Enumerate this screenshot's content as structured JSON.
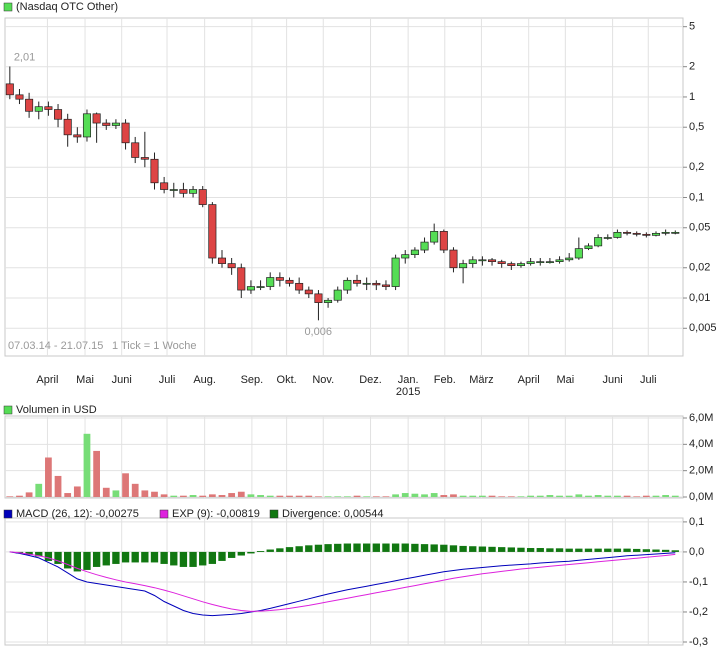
{
  "chart_data": [
    {
      "type": "candlestick",
      "legend": "(Nasdaq OTC Other)",
      "legend_color": "#55dd55",
      "date_range": "07.03.14 - 21.07.15",
      "tick_note": "1 Tick = 1 Woche",
      "up_color": "#55dd55",
      "down_color": "#dd4444",
      "log_scale": true,
      "grid": true,
      "ylim": [
        0.00265,
        6.1
      ],
      "yticks": [
        5,
        2,
        1,
        {
          "value": 0.5,
          "label": "0,5"
        },
        {
          "value": 0.2,
          "label": "0,2"
        },
        {
          "value": 0.1,
          "label": "0,1"
        },
        {
          "value": 0.05,
          "label": "0,05"
        },
        {
          "value": 0.02,
          "label": "0,02"
        },
        {
          "value": 0.01,
          "label": "0,01"
        },
        {
          "value": 0.005,
          "label": "0,005"
        }
      ],
      "xlim": [
        -0.5,
        69.8
      ],
      "xticks": [
        {
          "value": 3.9,
          "label": "April"
        },
        {
          "value": 7.8,
          "label": "Mai"
        },
        {
          "value": 11.6,
          "label": "Juni"
        },
        {
          "value": 16.3,
          "label": "Juli"
        },
        {
          "value": 20.2,
          "label": "Aug."
        },
        {
          "value": 25.1,
          "label": "Sep."
        },
        {
          "value": 28.7,
          "label": "Okt."
        },
        {
          "value": 32.5,
          "label": "Nov."
        },
        {
          "value": 37.4,
          "label": "Dez."
        },
        {
          "value": 41.3,
          "label": "Jan."
        },
        {
          "value": 45.1,
          "label": "Feb."
        },
        {
          "value": 48.9,
          "label": "März"
        },
        {
          "value": 53.8,
          "label": "April"
        },
        {
          "value": 57.6,
          "label": "Mai"
        },
        {
          "value": 62.5,
          "label": "Juni"
        },
        {
          "value": 66.2,
          "label": "Juli"
        }
      ],
      "year_labels": [
        {
          "value": 41.3,
          "label": "2015"
        }
      ],
      "open": [
        1.35,
        1.05,
        0.95,
        0.72,
        0.8,
        0.75,
        0.6,
        0.42,
        0.4,
        0.68,
        0.55,
        0.52,
        0.55,
        0.35,
        0.25,
        0.24,
        0.14,
        0.12,
        0.12,
        0.11,
        0.12,
        0.085,
        0.025,
        0.022,
        0.02,
        0.012,
        0.013,
        0.013,
        0.016,
        0.015,
        0.014,
        0.012,
        0.011,
        0.009,
        0.0095,
        0.012,
        0.015,
        0.014,
        0.014,
        0.0135,
        0.013,
        0.025,
        0.027,
        0.03,
        0.036,
        0.046,
        0.03,
        0.02,
        0.022,
        0.024,
        0.024,
        0.023,
        0.022,
        0.021,
        0.022,
        0.023,
        0.023,
        0.023,
        0.024,
        0.025,
        0.031,
        0.033,
        0.04,
        0.04,
        0.045,
        0.044,
        0.043,
        0.042,
        0.044,
        0.045
      ],
      "close": [
        1.05,
        0.95,
        0.72,
        0.8,
        0.75,
        0.6,
        0.42,
        0.4,
        0.68,
        0.55,
        0.52,
        0.55,
        0.35,
        0.25,
        0.24,
        0.14,
        0.12,
        0.12,
        0.11,
        0.12,
        0.085,
        0.025,
        0.022,
        0.02,
        0.012,
        0.013,
        0.013,
        0.016,
        0.015,
        0.014,
        0.012,
        0.011,
        0.009,
        0.0095,
        0.012,
        0.015,
        0.014,
        0.014,
        0.0135,
        0.013,
        0.025,
        0.027,
        0.03,
        0.036,
        0.046,
        0.03,
        0.02,
        0.022,
        0.024,
        0.024,
        0.023,
        0.022,
        0.021,
        0.022,
        0.023,
        0.023,
        0.023,
        0.024,
        0.025,
        0.031,
        0.033,
        0.04,
        0.04,
        0.045,
        0.044,
        0.043,
        0.042,
        0.044,
        0.045,
        0.045
      ],
      "high": [
        2.01,
        1.2,
        1.1,
        0.9,
        0.9,
        0.85,
        0.68,
        0.5,
        0.75,
        0.7,
        0.6,
        0.6,
        0.6,
        0.4,
        0.45,
        0.28,
        0.16,
        0.14,
        0.14,
        0.13,
        0.13,
        0.09,
        0.03,
        0.025,
        0.022,
        0.015,
        0.015,
        0.018,
        0.018,
        0.016,
        0.016,
        0.013,
        0.012,
        0.01,
        0.013,
        0.016,
        0.017,
        0.016,
        0.015,
        0.015,
        0.027,
        0.03,
        0.032,
        0.04,
        0.055,
        0.048,
        0.032,
        0.024,
        0.026,
        0.026,
        0.025,
        0.024,
        0.023,
        0.023,
        0.025,
        0.025,
        0.025,
        0.026,
        0.028,
        0.04,
        0.035,
        0.043,
        0.043,
        0.048,
        0.047,
        0.046,
        0.045,
        0.046,
        0.048,
        0.047
      ],
      "low": [
        0.95,
        0.85,
        0.62,
        0.6,
        0.65,
        0.5,
        0.32,
        0.35,
        0.36,
        0.35,
        0.47,
        0.48,
        0.3,
        0.22,
        0.2,
        0.12,
        0.11,
        0.1,
        0.1,
        0.1,
        0.08,
        0.022,
        0.02,
        0.017,
        0.01,
        0.011,
        0.012,
        0.012,
        0.013,
        0.013,
        0.011,
        0.01,
        0.006,
        0.008,
        0.009,
        0.011,
        0.013,
        0.012,
        0.012,
        0.012,
        0.012,
        0.022,
        0.025,
        0.028,
        0.034,
        0.028,
        0.018,
        0.014,
        0.02,
        0.021,
        0.021,
        0.02,
        0.019,
        0.02,
        0.021,
        0.021,
        0.022,
        0.022,
        0.023,
        0.024,
        0.03,
        0.032,
        0.038,
        0.039,
        0.042,
        0.041,
        0.04,
        0.041,
        0.042,
        0.043
      ],
      "high_label": "2,01",
      "low_label": "0,006"
    },
    {
      "type": "volume",
      "legend": "Volumen in USD",
      "legend_color": "#55dd55",
      "grid": true,
      "ylim": [
        0,
        6000000
      ],
      "yticks": [
        {
          "value": 6000000,
          "label": "6,0M"
        },
        {
          "value": 4000000,
          "label": "4,0M"
        },
        {
          "value": 2000000,
          "label": "2,0M"
        },
        {
          "value": 0,
          "label": "0,0M"
        }
      ],
      "values": [
        50000,
        100000,
        350000,
        1000000,
        3000000,
        1600000,
        300000,
        800000,
        4800000,
        3500000,
        700000,
        500000,
        1800000,
        1000000,
        500000,
        400000,
        200000,
        100000,
        100000,
        150000,
        100000,
        200000,
        150000,
        300000,
        400000,
        200000,
        150000,
        100000,
        100000,
        100000,
        100000,
        100000,
        50000,
        50000,
        50000,
        50000,
        100000,
        50000,
        50000,
        50000,
        200000,
        300000,
        250000,
        200000,
        300000,
        150000,
        200000,
        100000,
        100000,
        100000,
        100000,
        50000,
        50000,
        50000,
        100000,
        100000,
        150000,
        100000,
        100000,
        200000,
        100000,
        150000,
        100000,
        100000,
        100000,
        50000,
        100000,
        100000,
        150000,
        100000
      ]
    },
    {
      "type": "macd",
      "grid": true,
      "ylim": [
        -0.31,
        0.113
      ],
      "yticks": [
        {
          "value": 0.1,
          "label": "0,1"
        },
        {
          "value": 0,
          "label": "0,0"
        },
        {
          "value": -0.1,
          "label": "-0,1"
        },
        {
          "value": -0.2,
          "label": "-0,2"
        },
        {
          "value": -0.3,
          "label": "-0,3"
        }
      ],
      "series": [
        {
          "name": "MACD (26, 12): -0,00275",
          "color": "#0000bb",
          "kind": "line",
          "values": [
            0,
            -0.005,
            -0.012,
            -0.02,
            -0.035,
            -0.05,
            -0.07,
            -0.09,
            -0.1,
            -0.105,
            -0.11,
            -0.115,
            -0.12,
            -0.125,
            -0.13,
            -0.145,
            -0.165,
            -0.18,
            -0.195,
            -0.205,
            -0.21,
            -0.212,
            -0.21,
            -0.208,
            -0.205,
            -0.2,
            -0.195,
            -0.188,
            -0.18,
            -0.172,
            -0.164,
            -0.156,
            -0.148,
            -0.14,
            -0.133,
            -0.126,
            -0.12,
            -0.114,
            -0.108,
            -0.102,
            -0.096,
            -0.09,
            -0.084,
            -0.078,
            -0.072,
            -0.066,
            -0.062,
            -0.058,
            -0.055,
            -0.052,
            -0.049,
            -0.046,
            -0.044,
            -0.042,
            -0.04,
            -0.037,
            -0.035,
            -0.033,
            -0.031,
            -0.028,
            -0.025,
            -0.022,
            -0.019,
            -0.016,
            -0.013,
            -0.011,
            -0.009,
            -0.007,
            -0.005,
            -0.00275
          ]
        },
        {
          "name": "EXP (9): -0,00819",
          "color": "#dd22dd",
          "kind": "line",
          "values": [
            0,
            -0.003,
            -0.008,
            -0.013,
            -0.02,
            -0.03,
            -0.042,
            -0.055,
            -0.066,
            -0.076,
            -0.085,
            -0.093,
            -0.1,
            -0.106,
            -0.112,
            -0.119,
            -0.127,
            -0.136,
            -0.146,
            -0.156,
            -0.166,
            -0.175,
            -0.183,
            -0.19,
            -0.195,
            -0.198,
            -0.197,
            -0.195,
            -0.192,
            -0.188,
            -0.183,
            -0.178,
            -0.172,
            -0.166,
            -0.16,
            -0.154,
            -0.148,
            -0.142,
            -0.136,
            -0.13,
            -0.124,
            -0.118,
            -0.112,
            -0.106,
            -0.1,
            -0.094,
            -0.088,
            -0.083,
            -0.078,
            -0.073,
            -0.069,
            -0.065,
            -0.061,
            -0.057,
            -0.054,
            -0.051,
            -0.048,
            -0.045,
            -0.042,
            -0.039,
            -0.036,
            -0.033,
            -0.03,
            -0.027,
            -0.024,
            -0.021,
            -0.018,
            -0.015,
            -0.012,
            -0.00819
          ]
        },
        {
          "name": "Divergence: 0,00544",
          "color": "#117711",
          "kind": "bar",
          "values": [
            0,
            -0.005,
            -0.01,
            -0.015,
            -0.03,
            -0.04,
            -0.055,
            -0.065,
            -0.06,
            -0.05,
            -0.045,
            -0.04,
            -0.035,
            -0.035,
            -0.035,
            -0.035,
            -0.04,
            -0.045,
            -0.05,
            -0.05,
            -0.045,
            -0.04,
            -0.03,
            -0.02,
            -0.012,
            -0.005,
            0.003,
            0.008,
            0.012,
            0.016,
            0.019,
            0.022,
            0.024,
            0.026,
            0.027,
            0.028,
            0.028,
            0.028,
            0.028,
            0.028,
            0.028,
            0.028,
            0.027,
            0.026,
            0.025,
            0.024,
            0.022,
            0.02,
            0.019,
            0.018,
            0.017,
            0.016,
            0.015,
            0.014,
            0.013,
            0.013,
            0.012,
            0.012,
            0.011,
            0.011,
            0.011,
            0.011,
            0.011,
            0.011,
            0.011,
            0.01,
            0.009,
            0.008,
            0.007,
            0.00544
          ]
        }
      ]
    }
  ]
}
